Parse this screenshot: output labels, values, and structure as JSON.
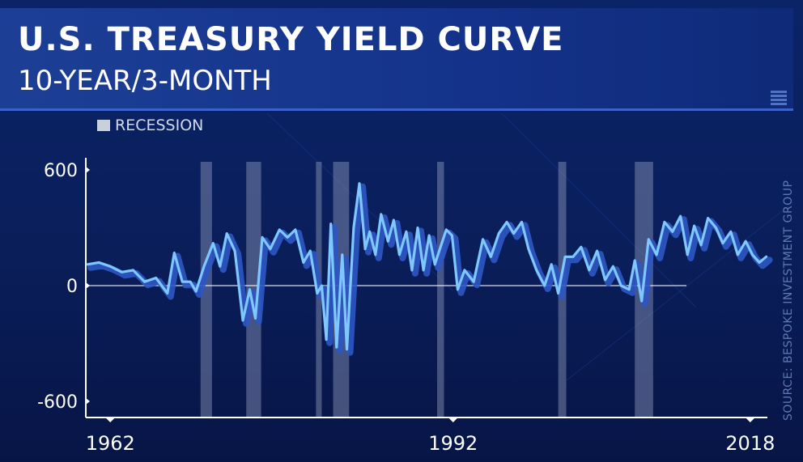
{
  "header": {
    "title": "U.S. TREASURY YIELD CURVE",
    "subtitle": "10-YEAR/3-MONTH"
  },
  "legend": {
    "label": "RECESSION"
  },
  "source": "SOURCE: BESPOKE INVESTMENT GROUP",
  "colors": {
    "background": "#0a1f5c",
    "line": "#7ec8ff",
    "shadow": "#2e57c4",
    "recession": "#a9b3cc",
    "axis": "#ffffff"
  },
  "chart_data": {
    "type": "line",
    "title": "U.S. TREASURY YIELD CURVE",
    "subtitle": "10-YEAR/3-MONTH",
    "xlim": [
      1960,
      2019.5
    ],
    "ylim": [
      -600,
      600
    ],
    "x_ticks": [
      {
        "value": 1962,
        "label": "1962"
      },
      {
        "value": 1992,
        "label": "1992"
      },
      {
        "value": 2018,
        "label": "2018"
      }
    ],
    "y_ticks": [
      {
        "value": 600,
        "label": "600"
      },
      {
        "value": 0,
        "label": "0"
      },
      {
        "value": -600,
        "label": "-600"
      }
    ],
    "recessions": [
      [
        1969.9,
        1970.9
      ],
      [
        1973.9,
        1975.2
      ],
      [
        1980.0,
        1980.5
      ],
      [
        1981.5,
        1982.9
      ],
      [
        1990.6,
        1991.2
      ],
      [
        2001.2,
        2001.9
      ],
      [
        2007.9,
        2009.5
      ]
    ],
    "series": [
      {
        "values": [
          [
            1960,
            110
          ],
          [
            1961,
            120
          ],
          [
            1962,
            100
          ],
          [
            1963,
            70
          ],
          [
            1964,
            80
          ],
          [
            1965,
            20
          ],
          [
            1966,
            40
          ],
          [
            1967,
            -40
          ],
          [
            1967.6,
            170
          ],
          [
            1968.3,
            20
          ],
          [
            1969,
            20
          ],
          [
            1969.5,
            -30
          ],
          [
            1970.2,
            100
          ],
          [
            1971,
            220
          ],
          [
            1971.6,
            100
          ],
          [
            1972.2,
            270
          ],
          [
            1972.9,
            180
          ],
          [
            1973.6,
            -180
          ],
          [
            1974.2,
            -20
          ],
          [
            1974.7,
            -170
          ],
          [
            1975.3,
            250
          ],
          [
            1976,
            190
          ],
          [
            1976.8,
            290
          ],
          [
            1977.5,
            250
          ],
          [
            1978.2,
            290
          ],
          [
            1978.9,
            120
          ],
          [
            1979.5,
            180
          ],
          [
            1980.1,
            -40
          ],
          [
            1980.5,
            0
          ],
          [
            1980.9,
            -280
          ],
          [
            1981.3,
            320
          ],
          [
            1981.8,
            -320
          ],
          [
            1982.3,
            160
          ],
          [
            1982.7,
            -330
          ],
          [
            1983.3,
            300
          ],
          [
            1983.8,
            530
          ],
          [
            1984.3,
            190
          ],
          [
            1984.7,
            280
          ],
          [
            1985.2,
            160
          ],
          [
            1985.7,
            370
          ],
          [
            1986.3,
            230
          ],
          [
            1986.8,
            340
          ],
          [
            1987.3,
            160
          ],
          [
            1987.9,
            280
          ],
          [
            1988.4,
            80
          ],
          [
            1988.9,
            300
          ],
          [
            1989.4,
            80
          ],
          [
            1989.9,
            260
          ],
          [
            1990.4,
            110
          ],
          [
            1990.9,
            200
          ],
          [
            1991.4,
            290
          ],
          [
            1991.9,
            260
          ],
          [
            1992.4,
            -20
          ],
          [
            1993,
            80
          ],
          [
            1993.8,
            20
          ],
          [
            1994.6,
            240
          ],
          [
            1995.3,
            150
          ],
          [
            1996,
            270
          ],
          [
            1996.7,
            330
          ],
          [
            1997.3,
            270
          ],
          [
            1998,
            330
          ],
          [
            1998.6,
            190
          ],
          [
            1999.3,
            80
          ],
          [
            2000,
            0
          ],
          [
            2000.6,
            110
          ],
          [
            2001.2,
            -40
          ],
          [
            2001.8,
            150
          ],
          [
            2002.5,
            150
          ],
          [
            2003.2,
            200
          ],
          [
            2003.9,
            80
          ],
          [
            2004.6,
            180
          ],
          [
            2005.3,
            30
          ],
          [
            2006,
            100
          ],
          [
            2006.7,
            0
          ],
          [
            2007.4,
            -20
          ],
          [
            2007.9,
            130
          ],
          [
            2008.5,
            -80
          ],
          [
            2009.1,
            240
          ],
          [
            2009.8,
            160
          ],
          [
            2010.5,
            330
          ],
          [
            2011.2,
            280
          ],
          [
            2011.9,
            360
          ],
          [
            2012.5,
            160
          ],
          [
            2013.1,
            310
          ],
          [
            2013.7,
            210
          ],
          [
            2014.3,
            350
          ],
          [
            2015,
            300
          ],
          [
            2015.6,
            220
          ],
          [
            2016.3,
            280
          ],
          [
            2016.9,
            160
          ],
          [
            2017.6,
            230
          ],
          [
            2018.2,
            160
          ],
          [
            2018.8,
            120
          ],
          [
            2019.4,
            150
          ]
        ]
      }
    ]
  }
}
